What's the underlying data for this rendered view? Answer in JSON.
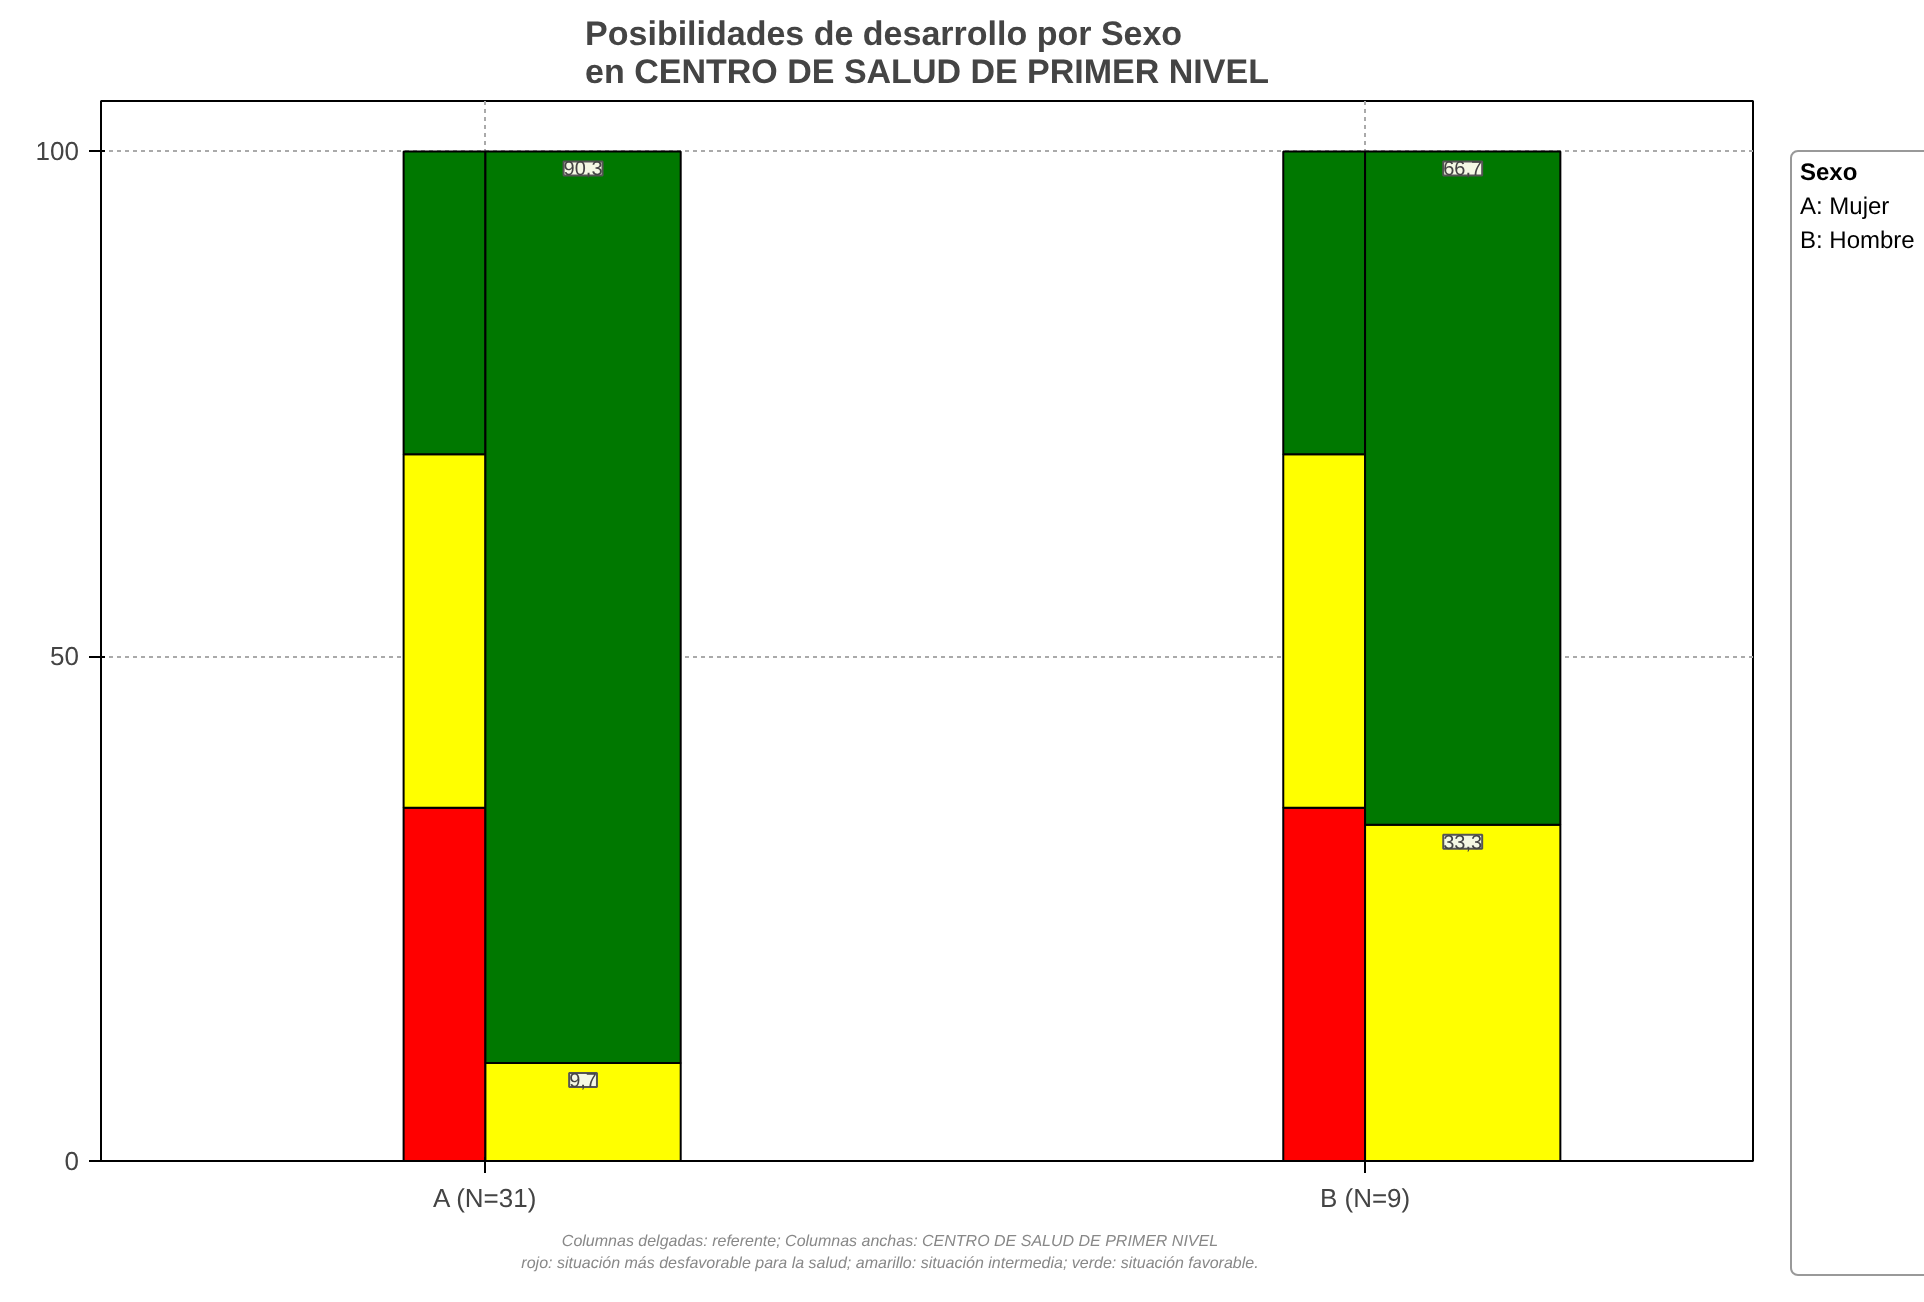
{
  "chart_data": {
    "type": "bar",
    "title": "Posibilidades de desarrollo por Sexo\nen CENTRO DE SALUD DE PRIMER NIVEL",
    "categories": [
      "A (N=31)",
      "B (N=9)"
    ],
    "series": [
      {
        "color": "#ff0000",
        "values": [
          35,
          35
        ],
        "base": [
          0,
          0
        ]
      },
      {
        "color": "#ffff00",
        "values": [
          35,
          35
        ],
        "base": [
          35,
          35
        ]
      },
      {
        "color": "#007800",
        "values": [
          30,
          30
        ],
        "base": [
          70,
          70
        ]
      },
      {
        "color": "#ffff00",
        "values": [
          9.7,
          33.3
        ],
        "base": [
          0,
          0
        ],
        "value_labels": [
          "9,7",
          "33,3"
        ]
      },
      {
        "color": "#007800",
        "values": [
          90.3,
          66.7
        ],
        "base": [
          9.7,
          33.3
        ],
        "value_labels": [
          "90,3",
          "66,7"
        ]
      }
    ],
    "ylim": [
      0,
      105
    ],
    "yticks": [
      0,
      50,
      100
    ],
    "grid": true,
    "legend_title": "Sexo",
    "annotations": [
      "A: Mujer",
      "B: Hombre",
      "Columnas delgadas: referente; Columnas anchas: CENTRO DE SALUD DE PRIMER NIVEL",
      "rojo: situación más desfavorable para la salud; amarillo: situación intermedia; verde: situación favorable."
    ]
  }
}
